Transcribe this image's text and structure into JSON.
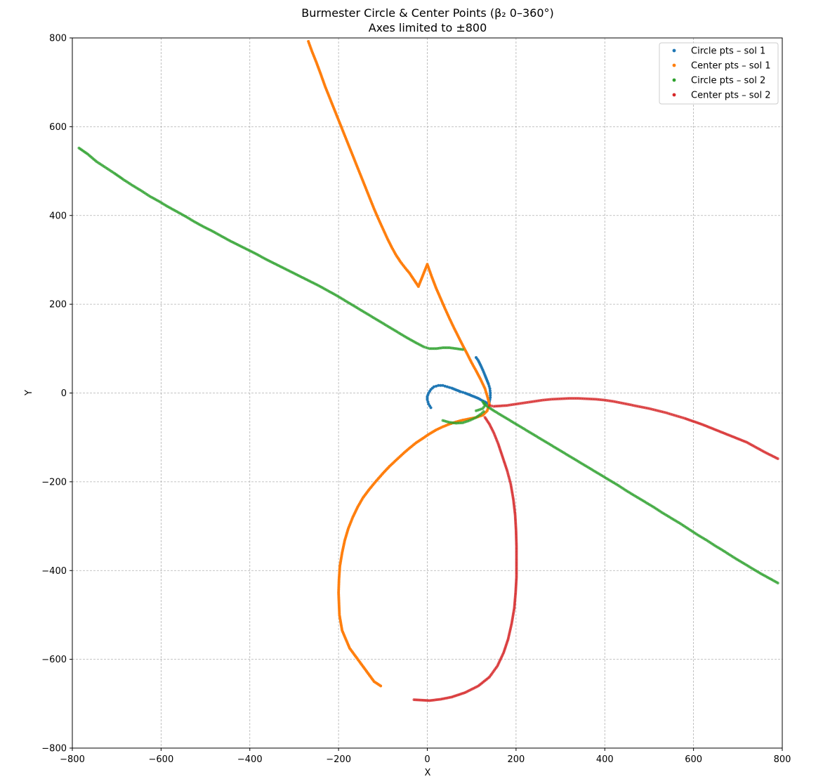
{
  "chart_data": {
    "type": "scatter",
    "title": "Burmester Circle & Center Points (β₂ 0–360°)",
    "subtitle": "Axes limited to ±800",
    "xlabel": "X",
    "ylabel": "Y",
    "xlim": [
      -800,
      800
    ],
    "ylim": [
      -800,
      800
    ],
    "xticks": [
      -800,
      -600,
      -400,
      -200,
      0,
      200,
      400,
      600,
      800
    ],
    "yticks": [
      -800,
      -600,
      -400,
      -200,
      0,
      200,
      400,
      600,
      800
    ],
    "xtick_labels": [
      "−800",
      "−600",
      "−400",
      "−200",
      "0",
      "200",
      "400",
      "600",
      "800"
    ],
    "ytick_labels": [
      "−800",
      "−600",
      "−400",
      "−200",
      "0",
      "200",
      "400",
      "600",
      "800"
    ],
    "grid": true,
    "legend_position": "top-right",
    "series": [
      {
        "name": "Circle pts – sol 1",
        "color": "#1f77b4",
        "points": [
          [
            8,
            -33
          ],
          [
            3,
            -25
          ],
          [
            0,
            -15
          ],
          [
            0,
            -8
          ],
          [
            3,
            0
          ],
          [
            8,
            8
          ],
          [
            15,
            14
          ],
          [
            25,
            17
          ],
          [
            35,
            17
          ],
          [
            45,
            14
          ],
          [
            55,
            11
          ],
          [
            65,
            7
          ],
          [
            75,
            3
          ],
          [
            85,
            0
          ],
          [
            95,
            -4
          ],
          [
            105,
            -8
          ],
          [
            115,
            -12
          ],
          [
            122,
            -16
          ],
          [
            130,
            -20
          ],
          [
            137,
            -24
          ],
          [
            140,
            -20
          ],
          [
            142,
            -10
          ],
          [
            142,
            0
          ],
          [
            141,
            10
          ],
          [
            138,
            20
          ],
          [
            134,
            30
          ],
          [
            130,
            40
          ],
          [
            125,
            52
          ],
          [
            120,
            63
          ],
          [
            115,
            73
          ],
          [
            110,
            80
          ]
        ]
      },
      {
        "name": "Center pts – sol 1",
        "color": "#ff7f0e",
        "points": [
          [
            -268,
            792
          ],
          [
            -260,
            770
          ],
          [
            -250,
            745
          ],
          [
            -240,
            718
          ],
          [
            -230,
            690
          ],
          [
            -220,
            665
          ],
          [
            -210,
            640
          ],
          [
            -200,
            615
          ],
          [
            -190,
            590
          ],
          [
            -180,
            565
          ],
          [
            -170,
            540
          ],
          [
            -160,
            515
          ],
          [
            -150,
            490
          ],
          [
            -140,
            465
          ],
          [
            -130,
            440
          ],
          [
            -120,
            415
          ],
          [
            -110,
            392
          ],
          [
            -100,
            370
          ],
          [
            -90,
            348
          ],
          [
            -80,
            328
          ],
          [
            -70,
            310
          ],
          [
            -60,
            295
          ],
          [
            -50,
            282
          ],
          [
            -40,
            270
          ],
          [
            -30,
            255
          ],
          [
            -20,
            240
          ],
          [
            0,
            290
          ],
          [
            10,
            262
          ],
          [
            20,
            236
          ],
          [
            30,
            213
          ],
          [
            40,
            190
          ],
          [
            50,
            168
          ],
          [
            60,
            147
          ],
          [
            70,
            127
          ],
          [
            80,
            107
          ],
          [
            90,
            88
          ],
          [
            100,
            68
          ],
          [
            110,
            50
          ],
          [
            120,
            31
          ],
          [
            130,
            10
          ],
          [
            136,
            -10
          ],
          [
            140,
            -25
          ],
          [
            135,
            -40
          ],
          [
            125,
            -50
          ],
          [
            110,
            -55
          ],
          [
            95,
            -58
          ],
          [
            80,
            -61
          ],
          [
            65,
            -65
          ],
          [
            50,
            -70
          ],
          [
            35,
            -76
          ],
          [
            20,
            -83
          ],
          [
            5,
            -92
          ],
          [
            -10,
            -102
          ],
          [
            -25,
            -112
          ],
          [
            -40,
            -124
          ],
          [
            -55,
            -137
          ],
          [
            -70,
            -151
          ],
          [
            -85,
            -165
          ],
          [
            -100,
            -181
          ],
          [
            -115,
            -198
          ],
          [
            -130,
            -216
          ],
          [
            -145,
            -236
          ],
          [
            -157,
            -257
          ],
          [
            -168,
            -280
          ],
          [
            -178,
            -305
          ],
          [
            -186,
            -332
          ],
          [
            -192,
            -360
          ],
          [
            -197,
            -390
          ],
          [
            -199,
            -420
          ],
          [
            -200,
            -450
          ],
          [
            -199,
            -475
          ],
          [
            -198,
            -500
          ],
          [
            -192,
            -535
          ],
          [
            -175,
            -575
          ],
          [
            -120,
            -650
          ],
          [
            -105,
            -660
          ]
        ]
      },
      {
        "name": "Circle pts – sol 2",
        "color": "#2ca02c",
        "points": [
          [
            -785,
            552
          ],
          [
            -765,
            538
          ],
          [
            -745,
            521
          ],
          [
            -725,
            508
          ],
          [
            -705,
            495
          ],
          [
            -685,
            481
          ],
          [
            -665,
            468
          ],
          [
            -645,
            456
          ],
          [
            -625,
            443
          ],
          [
            -605,
            432
          ],
          [
            -585,
            420
          ],
          [
            -565,
            409
          ],
          [
            -545,
            398
          ],
          [
            -525,
            386
          ],
          [
            -505,
            375
          ],
          [
            -485,
            365
          ],
          [
            -465,
            354
          ],
          [
            -445,
            343
          ],
          [
            -425,
            333
          ],
          [
            -405,
            323
          ],
          [
            -385,
            313
          ],
          [
            -365,
            302
          ],
          [
            -345,
            292
          ],
          [
            -325,
            282
          ],
          [
            -305,
            272
          ],
          [
            -285,
            262
          ],
          [
            -265,
            252
          ],
          [
            -245,
            242
          ],
          [
            -225,
            231
          ],
          [
            -205,
            220
          ],
          [
            -185,
            208
          ],
          [
            -165,
            196
          ],
          [
            -145,
            184
          ],
          [
            -125,
            172
          ],
          [
            -105,
            160
          ],
          [
            -85,
            148
          ],
          [
            -65,
            136
          ],
          [
            -45,
            124
          ],
          [
            -25,
            113
          ],
          [
            -8,
            104
          ],
          [
            5,
            100
          ],
          [
            20,
            100
          ],
          [
            35,
            102
          ],
          [
            50,
            102
          ],
          [
            65,
            100
          ],
          [
            80,
            98
          ],
          [
            110,
            -40
          ],
          [
            125,
            -35
          ],
          [
            130,
            -28
          ],
          [
            125,
            -20
          ],
          [
            135,
            -30
          ],
          [
            150,
            -40
          ],
          [
            170,
            -52
          ],
          [
            190,
            -64
          ],
          [
            210,
            -76
          ],
          [
            230,
            -88
          ],
          [
            250,
            -100
          ],
          [
            270,
            -112
          ],
          [
            290,
            -124
          ],
          [
            310,
            -136
          ],
          [
            330,
            -148
          ],
          [
            350,
            -160
          ],
          [
            370,
            -172
          ],
          [
            390,
            -184
          ],
          [
            410,
            -196
          ],
          [
            430,
            -208
          ],
          [
            450,
            -221
          ],
          [
            470,
            -233
          ],
          [
            490,
            -245
          ],
          [
            510,
            -257
          ],
          [
            530,
            -270
          ],
          [
            550,
            -282
          ],
          [
            570,
            -294
          ],
          [
            590,
            -307
          ],
          [
            610,
            -320
          ],
          [
            630,
            -332
          ],
          [
            650,
            -345
          ],
          [
            670,
            -357
          ],
          [
            690,
            -370
          ],
          [
            710,
            -382
          ],
          [
            730,
            -394
          ],
          [
            750,
            -406
          ],
          [
            770,
            -417
          ],
          [
            790,
            -428
          ],
          [
            35,
            -62
          ],
          [
            50,
            -66
          ],
          [
            65,
            -68
          ],
          [
            80,
            -67
          ],
          [
            95,
            -62
          ],
          [
            110,
            -55
          ],
          [
            120,
            -48
          ],
          [
            127,
            -42
          ]
        ]
      },
      {
        "name": "Center pts – sol 2",
        "color": "#d62728",
        "points": [
          [
            140,
            -28
          ],
          [
            150,
            -30
          ],
          [
            165,
            -29
          ],
          [
            180,
            -28
          ],
          [
            200,
            -25
          ],
          [
            220,
            -22
          ],
          [
            240,
            -19
          ],
          [
            260,
            -16
          ],
          [
            280,
            -14
          ],
          [
            300,
            -13
          ],
          [
            320,
            -12
          ],
          [
            340,
            -12
          ],
          [
            360,
            -13
          ],
          [
            380,
            -14
          ],
          [
            400,
            -16
          ],
          [
            420,
            -19
          ],
          [
            440,
            -23
          ],
          [
            460,
            -27
          ],
          [
            480,
            -31
          ],
          [
            500,
            -35
          ],
          [
            520,
            -40
          ],
          [
            540,
            -45
          ],
          [
            560,
            -51
          ],
          [
            580,
            -57
          ],
          [
            600,
            -64
          ],
          [
            620,
            -71
          ],
          [
            640,
            -79
          ],
          [
            660,
            -87
          ],
          [
            680,
            -95
          ],
          [
            700,
            -103
          ],
          [
            720,
            -111
          ],
          [
            740,
            -122
          ],
          [
            760,
            -133
          ],
          [
            790,
            -148
          ],
          [
            130,
            -55
          ],
          [
            140,
            -70
          ],
          [
            150,
            -90
          ],
          [
            160,
            -115
          ],
          [
            170,
            -145
          ],
          [
            180,
            -175
          ],
          [
            188,
            -205
          ],
          [
            194,
            -240
          ],
          [
            198,
            -275
          ],
          [
            200,
            -310
          ],
          [
            201,
            -345
          ],
          [
            201,
            -380
          ],
          [
            201,
            -415
          ],
          [
            199,
            -450
          ],
          [
            196,
            -485
          ],
          [
            190,
            -520
          ],
          [
            182,
            -555
          ],
          [
            172,
            -585
          ],
          [
            158,
            -615
          ],
          [
            140,
            -640
          ],
          [
            115,
            -660
          ],
          [
            85,
            -675
          ],
          [
            55,
            -685
          ],
          [
            30,
            -690
          ],
          [
            5,
            -693
          ],
          [
            -30,
            -691
          ]
        ]
      }
    ]
  }
}
